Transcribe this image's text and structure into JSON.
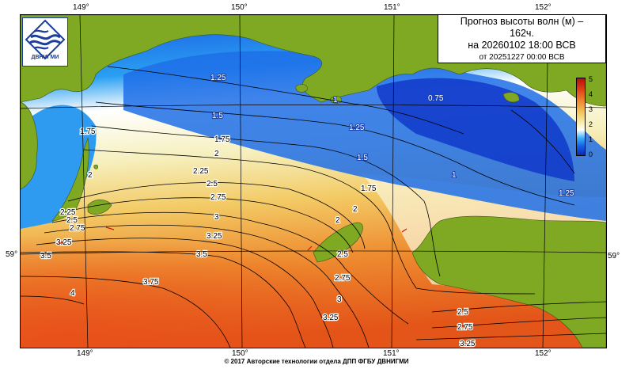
{
  "title": {
    "line1": "Прогноз высоты волн (м) –",
    "line2": "162ч.",
    "line3": "на 20260102 18:00 ВСВ",
    "line4": "от 20251227 00:00 ВСВ"
  },
  "logo_text": "ДВНИГМИ",
  "copyright": "© 2017 Авторские технологии отдела ДПП ФГБУ ДВНИГМИ",
  "lon_labels": [
    "149°",
    "150°",
    "151°",
    "152°"
  ],
  "lat_label": "59°",
  "colorbar": {
    "ticks": [
      "5",
      "4",
      "3",
      "2",
      "1",
      "0"
    ],
    "colors": [
      "#0a2ab0",
      "#1560e8",
      "#36aef8",
      "#ffffff",
      "#f7efb0",
      "#f2c860",
      "#ee8a30",
      "#e04818",
      "#b80d0a"
    ]
  },
  "contour_labels": {
    "c_125_a": "1.25",
    "c_1_a": "1",
    "c_075": "0.75",
    "c_15_a": "1.5",
    "c_125_b": "1.25",
    "c_175_a": "1.75",
    "c_175_b": "1.75",
    "c_15_b": "1.5",
    "c_1_b": "1",
    "c_125_c": "1.25",
    "c_2_a": "2",
    "c_2_b": "2",
    "c_225_a": "2.25",
    "c_25_a": "2.5",
    "c_275_a": "2.75",
    "c_175_c": "1.75",
    "c_2_c": "2",
    "c_3_a": "3",
    "c_325_a": "3.25",
    "c_35_a": "3.5",
    "c_35_b": "3.5",
    "c_375": "3.75",
    "c_4": "4",
    "c_325_b": "3.25",
    "c_225_b": "2.25",
    "c_25_b": "2.5",
    "c_275_b": "2.75",
    "c_2_d": "2",
    "c_3_b": "3",
    "c_325_c": "3.25",
    "c_25_c": "2.5",
    "c_275_c": "2.75",
    "c_325_d": "3.25",
    "c_275_d": "2.75",
    "c_25_d": "2.5"
  },
  "land_color": "#7fa823",
  "wave_scale": {
    "min_m": 0,
    "max_m": 5,
    "unit": "м"
  }
}
